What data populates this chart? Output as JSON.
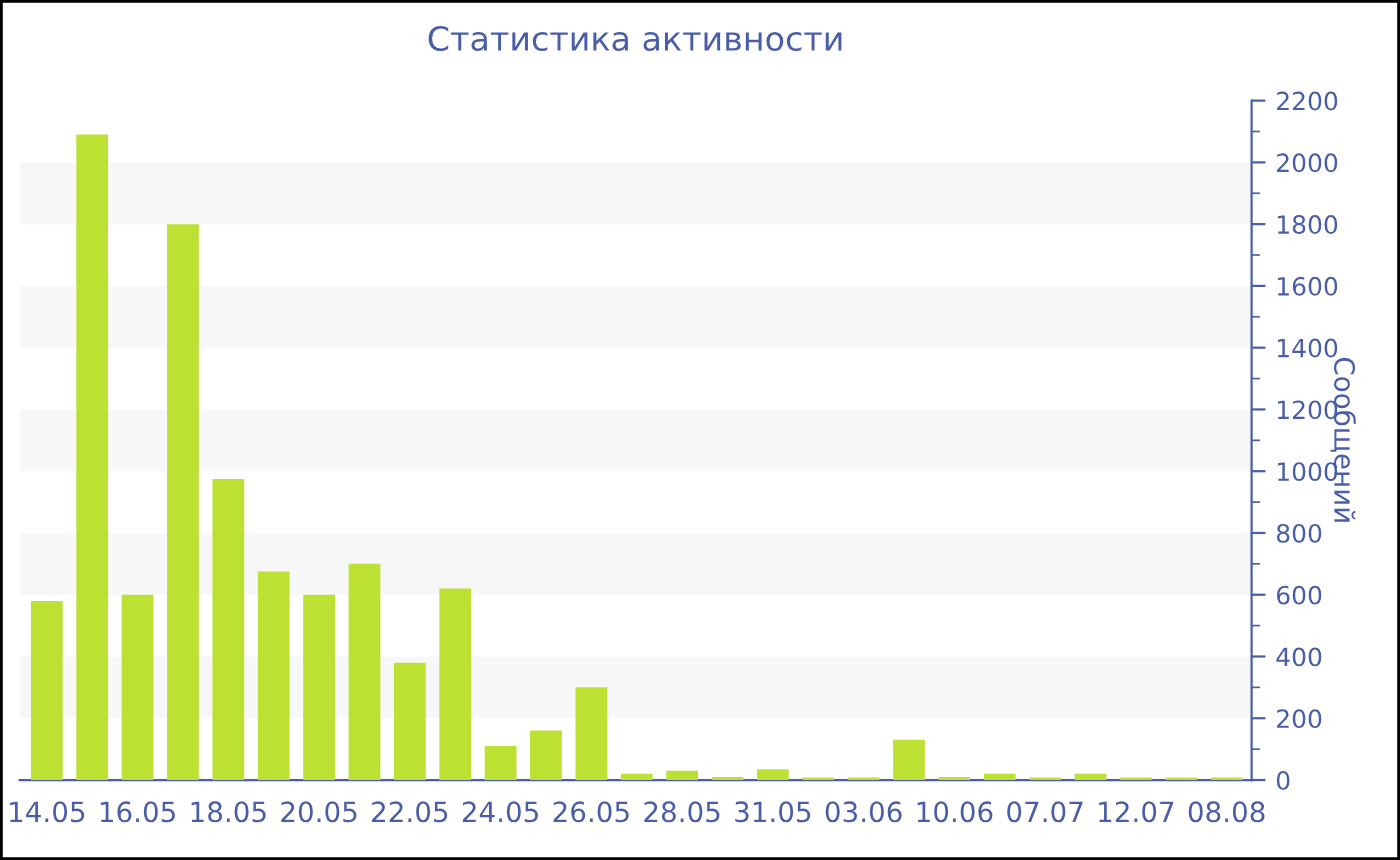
{
  "chart_data": {
    "type": "bar",
    "title": "Статистика активности",
    "ylabel": "Сообщений",
    "categories": [
      "14.05",
      null,
      "16.05",
      null,
      "18.05",
      null,
      "20.05",
      null,
      "22.05",
      null,
      "24.05",
      null,
      "26.05",
      null,
      "28.05",
      null,
      "31.05",
      null,
      "03.06",
      null,
      "10.06",
      null,
      "07.07",
      null,
      "12.07",
      null,
      "08.08"
    ],
    "values": [
      580,
      2090,
      600,
      1800,
      975,
      675,
      600,
      700,
      380,
      620,
      110,
      160,
      300,
      20,
      30,
      10,
      35,
      8,
      8,
      130,
      10,
      20,
      8,
      20,
      8,
      8,
      8
    ],
    "color": "#bce133",
    "ylim": [
      0,
      2200
    ],
    "yticks": [
      0,
      200,
      400,
      600,
      800,
      1000,
      1200,
      1400,
      1600,
      1800,
      2000,
      2200
    ],
    "bands": [
      {
        "axis": "y",
        "from": 200,
        "to": 400,
        "color": "#f7f7f7"
      },
      {
        "axis": "y",
        "from": 600,
        "to": 800,
        "color": "#f7f7f7"
      },
      {
        "axis": "y",
        "from": 1000,
        "to": 1200,
        "color": "#f7f7f7"
      },
      {
        "axis": "y",
        "from": 1400,
        "to": 1600,
        "color": "#f7f7f7"
      },
      {
        "axis": "y",
        "from": 1800,
        "to": 2000,
        "color": "#f7f7f7"
      }
    ]
  }
}
